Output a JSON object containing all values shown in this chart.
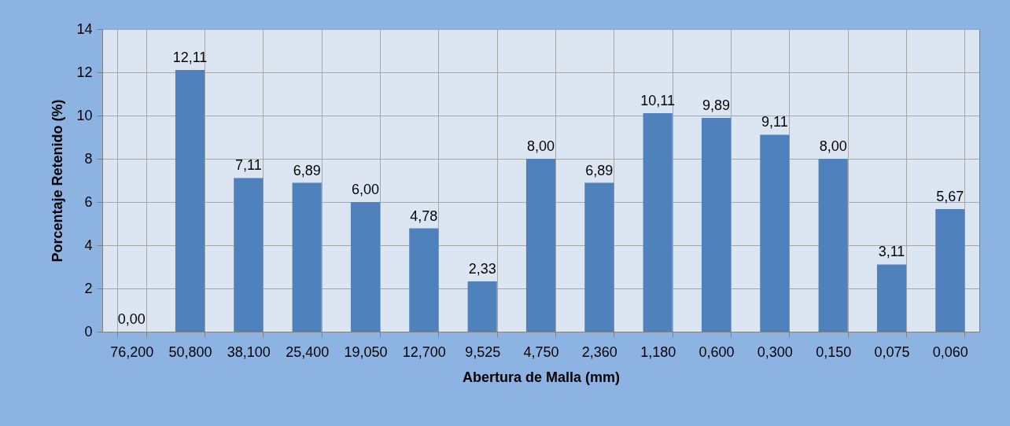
{
  "chart_data": {
    "type": "bar",
    "xlabel": "Abertura de Malla (mm)",
    "ylabel": "Porcentaje Retenido (%)",
    "categories": [
      "76,200",
      "50,800",
      "38,100",
      "25,400",
      "19,050",
      "12,700",
      "9,525",
      "4,750",
      "2,360",
      "1,180",
      "0,600",
      "0,300",
      "0,150",
      "0,075",
      "0,060"
    ],
    "values": [
      0,
      12.11,
      7.11,
      6.89,
      6,
      4.78,
      2.33,
      8,
      6.89,
      10.11,
      9.89,
      9.11,
      8,
      3.11,
      5.67
    ],
    "value_labels": [
      "0,00",
      "12,11",
      "7,11",
      "6,89",
      "6,00",
      "4,78",
      "2,33",
      "8,00",
      "6,89",
      "10,11",
      "9,89",
      "9,11",
      "8,00",
      "3,11",
      "5,67"
    ],
    "color": "#4f81bd",
    "ylim": [
      0,
      14
    ],
    "yticks": [
      0,
      2,
      4,
      6,
      8,
      10,
      12,
      14
    ],
    "grid": true
  }
}
